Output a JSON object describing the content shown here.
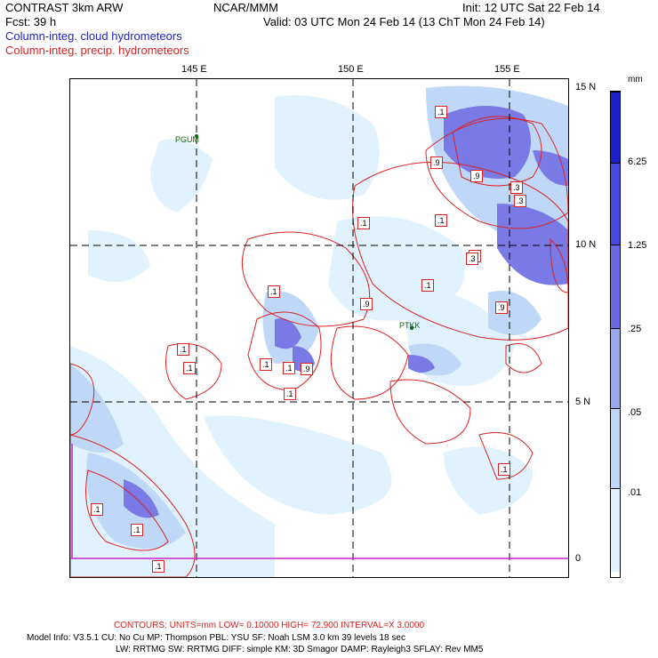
{
  "header": {
    "model": "CONTRAST  3km ARW",
    "forecast": "Fcst:   39 h",
    "center": "NCAR/MMM",
    "init": "Init: 12 UTC Sat 22 Feb 14",
    "valid": "Valid: 03 UTC Mon 24 Feb 14 (13 ChT Mon 24 Feb 14)",
    "field_cloud": "Column-integ. cloud hydrometeors",
    "field_precip": "Column-integ. precip. hydrometeors"
  },
  "axes": {
    "longitude_labels": [
      "145 E",
      "150 E",
      "155 E"
    ],
    "latitude_labels": [
      "15 N",
      "10 N",
      "5 N",
      "0"
    ]
  },
  "stations": [
    "PGUM",
    "PTKK"
  ],
  "colorbar": {
    "unit": "mm",
    "levels": [
      ".01",
      ".05",
      ".25",
      "1.25",
      "6.25"
    ],
    "colors": [
      "#ffffff",
      "#e0f2fd",
      "#c0d8f8",
      "#9aa8ee",
      "#6a6ae4",
      "#4848dc",
      "#2020c8"
    ]
  },
  "contour_labels": [
    ".1",
    ".1",
    ".9",
    ".9",
    ".3",
    ".9",
    ".3",
    ".1",
    ".3",
    ".1",
    ".9",
    ".9",
    ".1",
    ".1",
    ".1",
    ".1",
    ".1",
    ".9",
    ".1",
    ".1",
    ".1",
    ".1",
    ".1"
  ],
  "footer": {
    "contours": "CONTOURS:  UNITS=mm  LOW= 0.10000      HIGH= 72.900      INTERVAL=X  3.0000",
    "model_info_1": "Model Info: V3.5.1     CU: No Cu     MP: Thompson     PBL: YSU       SF: Noah LSM     3.0 km   39 levels    18 sec",
    "model_info_2": "LW: RRTMG    SW: RRTMG   DIFF: simple KM: 3D Smagor DAMP: Rayleigh3   SFLAY: Rev MM5"
  }
}
